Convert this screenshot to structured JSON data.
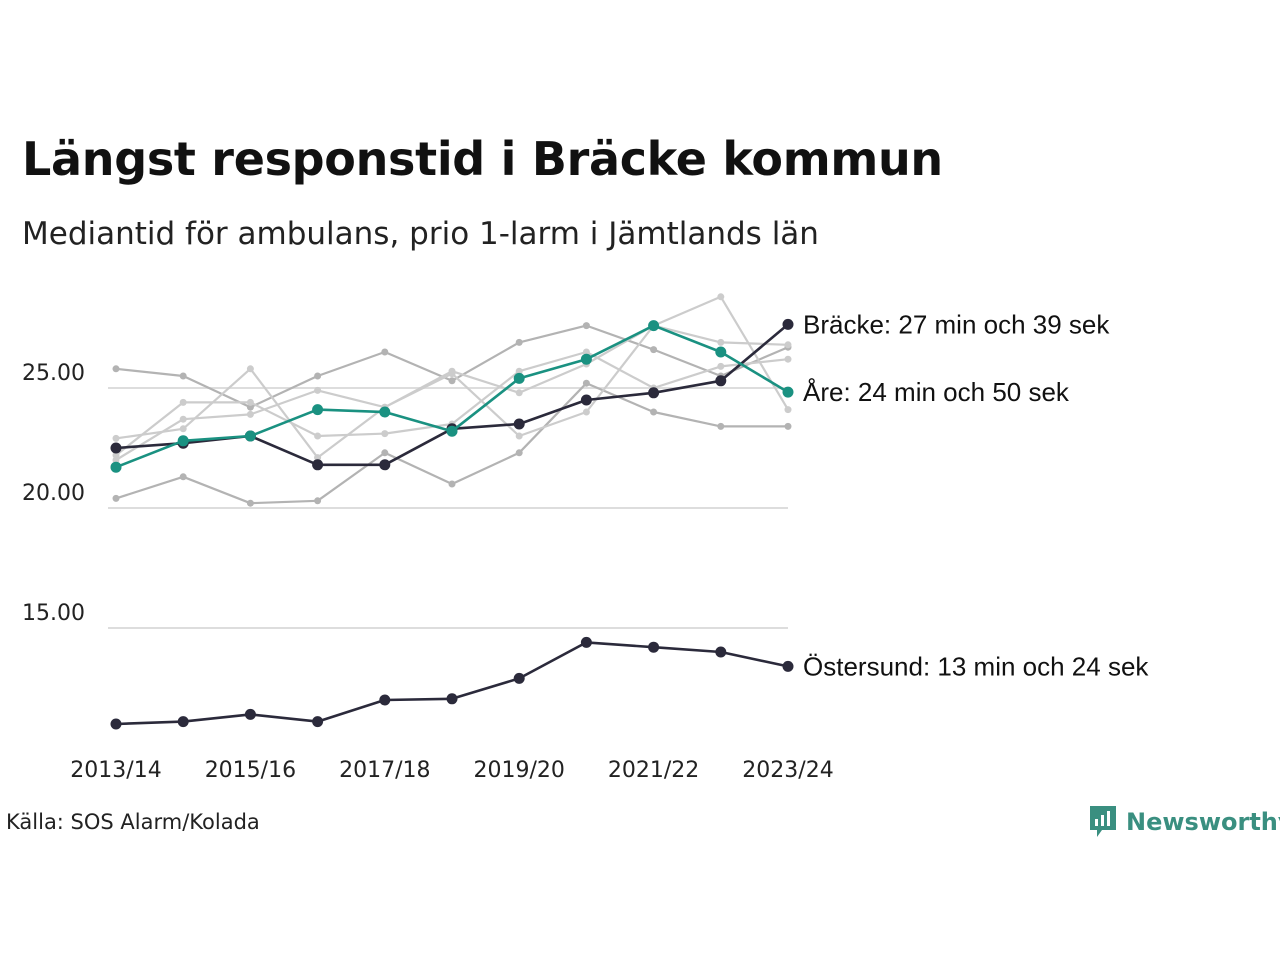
{
  "title": "Längst responstid i Bräcke kommun",
  "subtitle": "Mediantid för ambulans, prio 1-larm i Jämtlands län",
  "source": "Källa: SOS Alarm/Kolada",
  "brand": "Newsworthy",
  "colors": {
    "highlight_dark": "#2b2a3b",
    "highlight_teal": "#1a9181",
    "other_light": "#cccccc",
    "other_mid": "#b3b3b3",
    "gridline": "#dddddd",
    "brand": "#3a8f80"
  },
  "chart_data": {
    "type": "line",
    "x": [
      "2013/14",
      "2014/15",
      "2015/16",
      "2016/17",
      "2017/18",
      "2018/19",
      "2019/20",
      "2020/21",
      "2021/22",
      "2022/23",
      "2023/24"
    ],
    "x_tick_labels": [
      "2013/14",
      "2015/16",
      "2017/18",
      "2019/20",
      "2021/22",
      "2023/24"
    ],
    "y_ticks": [
      "15.00",
      "20.00",
      "25.00"
    ],
    "ylim": [
      10.5,
      28.5
    ],
    "grid": true,
    "series": [
      {
        "name": "Bräcke",
        "label": "Bräcke: 27 min och 39 sek",
        "color": "#2b2a3b",
        "highlight": true,
        "values": [
          22.5,
          22.7,
          23.0,
          21.8,
          21.8,
          23.3,
          23.5,
          24.5,
          24.8,
          25.3,
          27.65
        ]
      },
      {
        "name": "Åre",
        "label": "Åre: 24 min och 50 sek",
        "color": "#1a9181",
        "highlight": true,
        "values": [
          21.7,
          22.8,
          23.0,
          24.1,
          24.0,
          23.2,
          25.4,
          26.2,
          27.6,
          26.5,
          24.83
        ]
      },
      {
        "name": "Östersund",
        "label": "Östersund: 13 min och 24 sek",
        "color": "#2b2a3b",
        "highlight": true,
        "values": [
          11.0,
          11.1,
          11.4,
          11.1,
          12.0,
          12.05,
          12.9,
          14.4,
          14.2,
          14.0,
          13.4
        ]
      },
      {
        "color": "#b3b3b3",
        "highlight": false,
        "values": [
          25.8,
          25.5,
          24.2,
          25.5,
          26.5,
          25.3,
          26.9,
          27.6,
          26.6,
          25.5,
          26.7
        ]
      },
      {
        "color": "#b3b3b3",
        "highlight": false,
        "values": [
          20.4,
          21.3,
          20.2,
          20.3,
          22.3,
          21.0,
          22.3,
          25.2,
          24.0,
          23.4,
          23.4
        ]
      },
      {
        "color": "#cccccc",
        "highlight": false,
        "values": [
          22.9,
          23.3,
          25.8,
          22.1,
          24.2,
          25.6,
          23.0,
          24.0,
          27.6,
          26.9,
          26.8
        ]
      },
      {
        "color": "#cccccc",
        "highlight": false,
        "values": [
          22.2,
          24.4,
          24.4,
          23.0,
          23.1,
          23.5,
          25.7,
          26.5,
          25.0,
          25.9,
          26.2
        ]
      },
      {
        "color": "#cccccc",
        "highlight": false,
        "values": [
          22.0,
          23.7,
          23.9,
          24.9,
          24.2,
          25.7,
          24.8,
          26.0,
          27.6,
          28.8,
          24.1
        ]
      }
    ]
  }
}
